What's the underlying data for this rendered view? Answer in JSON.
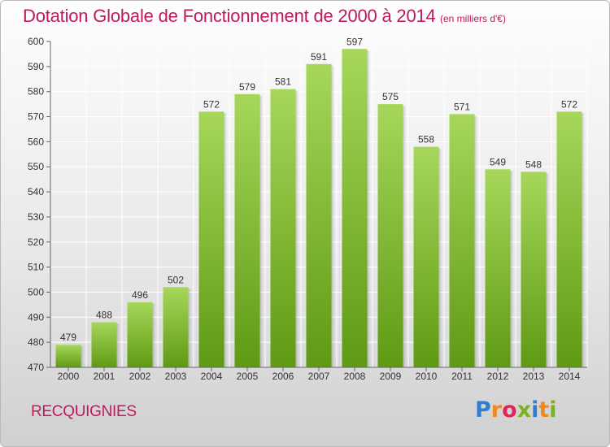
{
  "header": {
    "title": "Dotation Globale de Fonctionnement de 2000 à 2014",
    "subtitle": "(en milliers d'€)"
  },
  "footer": {
    "commune": "RECQUIGNIES",
    "brand": [
      "P",
      "r",
      "o",
      "x",
      "i",
      "t",
      "i"
    ]
  },
  "colors": {
    "title": "#c0185c",
    "bar_top": "#a6d75a",
    "bar_bottom": "#5f9a14",
    "grid": "#ffffff"
  },
  "chart_data": {
    "type": "bar",
    "title": "Dotation Globale de Fonctionnement de 2000 à 2014",
    "subtitle": "(en milliers d'€)",
    "categories": [
      "2000",
      "2001",
      "2002",
      "2003",
      "2004",
      "2005",
      "2006",
      "2007",
      "2008",
      "2009",
      "2010",
      "2011",
      "2012",
      "2013",
      "2014"
    ],
    "values": [
      479,
      488,
      496,
      502,
      572,
      579,
      581,
      591,
      597,
      575,
      558,
      571,
      549,
      548,
      572
    ],
    "ylim": [
      470,
      600
    ],
    "yticks": [
      470,
      480,
      490,
      500,
      510,
      520,
      530,
      540,
      550,
      560,
      570,
      580,
      590,
      600
    ],
    "grid": true,
    "xlabel": "",
    "ylabel": ""
  }
}
